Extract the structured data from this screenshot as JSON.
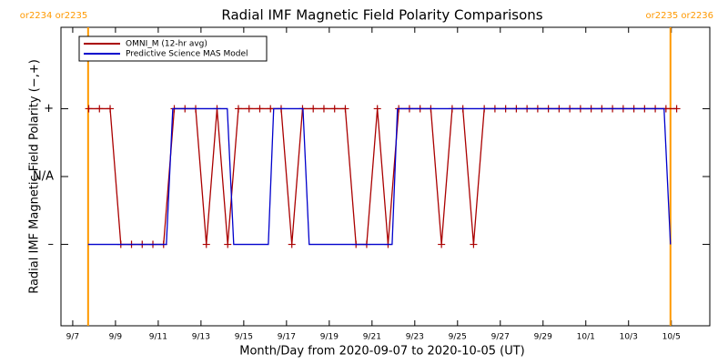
{
  "chart_data": {
    "type": "line",
    "title": "Radial IMF Magnetic Field Polarity Comparisons",
    "x_label": "Month/Day from 2020-09-07 to 2020-10-05 (UT)",
    "y_label": "Radial IMF Magnetic Field Polarity (−,+)",
    "xlim": [
      -0.55,
      29.8
    ],
    "xticks": [
      {
        "value": 0,
        "label": "9/7"
      },
      {
        "value": 2,
        "label": "9/9"
      },
      {
        "value": 4,
        "label": "9/11"
      },
      {
        "value": 6,
        "label": "9/13"
      },
      {
        "value": 8,
        "label": "9/15"
      },
      {
        "value": 10,
        "label": "9/17"
      },
      {
        "value": 12,
        "label": "9/19"
      },
      {
        "value": 14,
        "label": "9/21"
      },
      {
        "value": 16,
        "label": "9/23"
      },
      {
        "value": 18,
        "label": "9/25"
      },
      {
        "value": 20,
        "label": "9/27"
      },
      {
        "value": 22,
        "label": "9/29"
      },
      {
        "value": 24,
        "label": "10/1"
      },
      {
        "value": 26,
        "label": "10/3"
      },
      {
        "value": 28,
        "label": "10/5"
      }
    ],
    "ylim": [
      -2.2,
      2.2
    ],
    "yticks": [
      {
        "value": -1,
        "label": "–"
      },
      {
        "value": 0,
        "label": "N/A"
      },
      {
        "value": 1,
        "label": "+"
      }
    ],
    "legend": "upper left",
    "annotations": [
      {
        "x": 0.72,
        "label": "or2234 or2235",
        "color": "#ff9900"
      },
      {
        "x": 27.96,
        "label": "or2235 or2236",
        "color": "#ff9900"
      }
    ],
    "series": [
      {
        "name": "OMNI_M (12-hr avg)",
        "color": "#aa0000",
        "marker": "+",
        "x": [
          0.75,
          1.25,
          1.75,
          2.25,
          2.75,
          3.25,
          3.75,
          4.25,
          4.75,
          5.25,
          5.75,
          6.25,
          6.75,
          7.25,
          7.75,
          8.25,
          8.75,
          9.25,
          9.75,
          10.25,
          10.75,
          11.25,
          11.75,
          12.25,
          12.75,
          13.25,
          13.75,
          14.25,
          14.75,
          15.25,
          15.75,
          16.25,
          16.75,
          17.25,
          17.75,
          18.25,
          18.75,
          19.25,
          19.75,
          20.25,
          20.75,
          21.25,
          21.75,
          22.25,
          22.75,
          23.25,
          23.75,
          24.25,
          24.75,
          25.25,
          25.75,
          26.25,
          26.75,
          27.25,
          27.75,
          28.25
        ],
        "values": [
          1,
          1,
          1,
          -1,
          -1,
          -1,
          -1,
          -1,
          1,
          1,
          1,
          -1,
          1,
          -1,
          1,
          1,
          1,
          1,
          1,
          -1,
          1,
          1,
          1,
          1,
          1,
          -1,
          -1,
          1,
          -1,
          1,
          1,
          1,
          1,
          -1,
          1,
          1,
          -1,
          1,
          1,
          1,
          1,
          1,
          1,
          1,
          1,
          1,
          1,
          1,
          1,
          1,
          1,
          1,
          1,
          1,
          1,
          1
        ]
      },
      {
        "name": "Predictive Science MAS Model",
        "color": "#0000cc",
        "x": [
          0.72,
          4.38,
          4.68,
          7.23,
          7.53,
          9.15,
          9.4,
          10.77,
          11.06,
          14.94,
          15.19,
          27.66,
          27.96
        ],
        "values": [
          -1,
          -1,
          1,
          1,
          -1,
          -1,
          1,
          1,
          -1,
          -1,
          1,
          1,
          -1
        ]
      }
    ]
  }
}
